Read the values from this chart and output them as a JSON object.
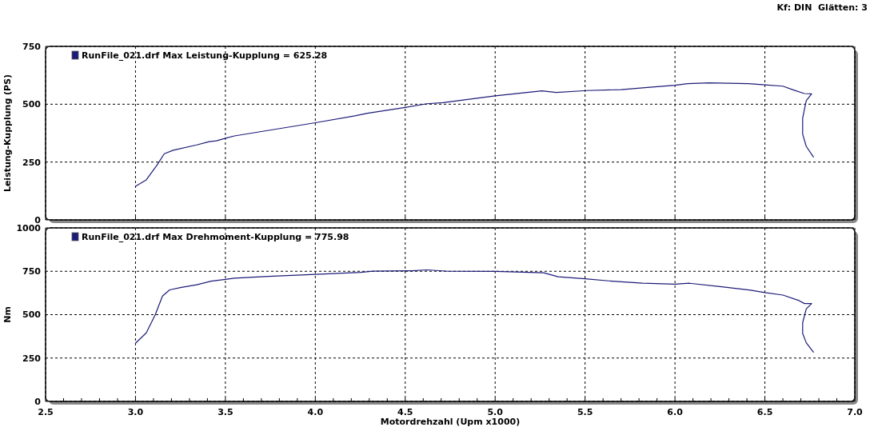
{
  "chart_data": [
    {
      "type": "line",
      "annotations": [
        "Kf: DIN  Glätten: 3"
      ],
      "ylabel": "Leistung-Kupplung (PS)",
      "xlim": [
        2.5,
        7.0
      ],
      "xticks": [
        {
          "value": 2.5,
          "label": null
        },
        {
          "value": 3,
          "label": null
        },
        {
          "value": 3.5,
          "label": null
        },
        {
          "value": 4,
          "label": null
        },
        {
          "value": 4.5,
          "label": null
        },
        {
          "value": 5,
          "label": null
        },
        {
          "value": 5.5,
          "label": null
        },
        {
          "value": 6,
          "label": null
        },
        {
          "value": 6.5,
          "label": null
        },
        {
          "value": 7,
          "label": null
        }
      ],
      "ylim": [
        0,
        750
      ],
      "yticks": [
        0,
        250,
        500,
        750
      ],
      "grid": true,
      "legend": "top left",
      "tick_labels": "y",
      "series": [
        {
          "name": "RunFile_021.drf Max Leistung-Kupplung = 625.28",
          "color": "#1c1c78",
          "x": [
            3.0,
            3.06,
            3.12,
            3.16,
            3.21,
            3.34,
            3.41,
            3.45,
            3.5,
            3.55,
            4.0,
            4.22,
            4.29,
            4.5,
            4.62,
            4.71,
            5.0,
            5.26,
            5.34,
            5.51,
            5.7,
            5.86,
            6.0,
            6.07,
            6.19,
            6.41,
            6.5,
            6.6,
            6.66,
            6.72,
            6.76,
            6.73,
            6.71,
            6.71,
            6.73,
            6.77
          ],
          "values": [
            145,
            173,
            237,
            286,
            301,
            324,
            338,
            342,
            353,
            363,
            420,
            450,
            461,
            486,
            502,
            507,
            536,
            558,
            551,
            559,
            563,
            573,
            582,
            589,
            592,
            589,
            584,
            578,
            561,
            546,
            545,
            515,
            440,
            370,
            318,
            272
          ]
        }
      ]
    },
    {
      "type": "line",
      "xlabel": "Motordrehzahl (Upm x1000)",
      "ylabel": "Nm",
      "xlim": [
        2.5,
        7.0
      ],
      "xticks": [
        2.5,
        {
          "value": 2.6,
          "label": null
        },
        {
          "value": 2.7,
          "label": null
        },
        {
          "value": 2.8,
          "label": null
        },
        {
          "value": 2.9,
          "label": null
        },
        {
          "value": 3,
          "label": "3.0"
        },
        {
          "value": 3.1,
          "label": null
        },
        {
          "value": 3.2,
          "label": null
        },
        {
          "value": 3.3,
          "label": null
        },
        {
          "value": 3.4,
          "label": null
        },
        3.5,
        {
          "value": 3.6,
          "label": null
        },
        {
          "value": 3.7,
          "label": null
        },
        {
          "value": 3.8,
          "label": null
        },
        {
          "value": 3.9,
          "label": null
        },
        {
          "value": 4,
          "label": "4.0"
        },
        {
          "value": 4.1,
          "label": null
        },
        {
          "value": 4.2,
          "label": null
        },
        {
          "value": 4.3,
          "label": null
        },
        {
          "value": 4.4,
          "label": null
        },
        4.5,
        {
          "value": 4.6,
          "label": null
        },
        {
          "value": 4.7,
          "label": null
        },
        {
          "value": 4.8,
          "label": null
        },
        {
          "value": 4.9,
          "label": null
        },
        {
          "value": 5,
          "label": "5.0"
        },
        {
          "value": 5.1,
          "label": null
        },
        {
          "value": 5.2,
          "label": null
        },
        {
          "value": 5.3,
          "label": null
        },
        {
          "value": 5.4,
          "label": null
        },
        5.5,
        {
          "value": 5.6,
          "label": null
        },
        {
          "value": 5.7,
          "label": null
        },
        {
          "value": 5.8,
          "label": null
        },
        {
          "value": 5.9,
          "label": null
        },
        {
          "value": 6,
          "label": "6.0"
        },
        {
          "value": 6.1,
          "label": null
        },
        {
          "value": 6.2,
          "label": null
        },
        {
          "value": 6.3,
          "label": null
        },
        {
          "value": 6.4,
          "label": null
        },
        6.5,
        {
          "value": 6.6,
          "label": null
        },
        {
          "value": 6.7,
          "label": null
        },
        {
          "value": 6.8,
          "label": null
        },
        {
          "value": 6.9,
          "label": null
        },
        {
          "value": 7,
          "label": "7.0"
        }
      ],
      "ylim": [
        0,
        1000
      ],
      "yticks": [
        0,
        250,
        500,
        750,
        1000
      ],
      "grid": true,
      "legend": "top left",
      "series": [
        {
          "name": "RunFile_021.drf Max Drehmoment-Kupplung = 775.98",
          "color": "#1c1c78",
          "x": [
            3.0,
            3.06,
            3.11,
            3.15,
            3.19,
            3.25,
            3.34,
            3.42,
            3.5,
            3.55,
            3.74,
            4.0,
            4.25,
            4.32,
            4.54,
            4.62,
            4.74,
            5.0,
            5.27,
            5.35,
            5.5,
            5.65,
            5.82,
            6.0,
            6.08,
            6.25,
            6.42,
            6.5,
            6.6,
            6.69,
            6.72,
            6.76,
            6.73,
            6.71,
            6.71,
            6.73,
            6.77
          ],
          "values": [
            335,
            395,
            500,
            607,
            643,
            656,
            672,
            693,
            703,
            710,
            721,
            732,
            744,
            751,
            753,
            758,
            750,
            749,
            741,
            718,
            707,
            693,
            681,
            676,
            681,
            662,
            641,
            627,
            613,
            581,
            564,
            564,
            533,
            454,
            392,
            338,
            284
          ]
        }
      ]
    }
  ]
}
